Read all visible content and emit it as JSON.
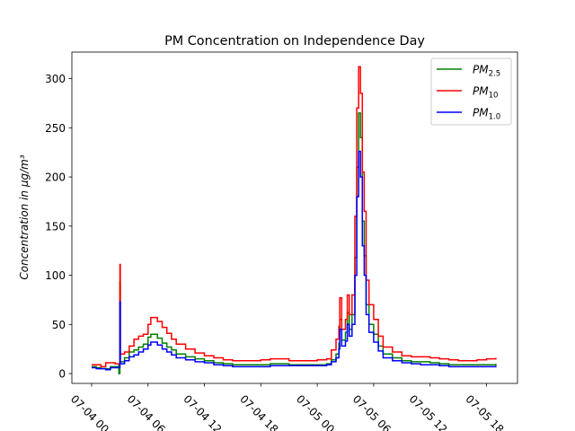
{
  "chart_data": {
    "type": "line",
    "title": "PM Concentration on Independence Day",
    "xlabel": "",
    "ylabel": "Concentration in μg/m³",
    "ylim": [
      -10,
      327
    ],
    "y_ticks": [
      0,
      50,
      100,
      150,
      200,
      250,
      300
    ],
    "x_ticks": [
      "07-04 00",
      "07-04 06",
      "07-04 12",
      "07-04 18",
      "07-05 00",
      "07-05 06",
      "07-05 12",
      "07-05 18"
    ],
    "x_unit": "hours since 07-04 00:00",
    "xlim": [
      -2.1,
      45.3
    ],
    "grid": false,
    "legend_position": "top-right",
    "series": [
      {
        "name": "PM2.5",
        "legend_base": "PM",
        "legend_sub": "2.5",
        "color": "#008000",
        "points": [
          [
            0,
            7
          ],
          [
            0.5,
            6
          ],
          [
            1,
            5
          ],
          [
            1.5,
            5
          ],
          [
            2,
            7
          ],
          [
            2.5,
            7
          ],
          [
            3,
            9
          ],
          [
            2.9,
            0
          ],
          [
            3,
            7
          ],
          [
            3,
            93
          ],
          [
            3.05,
            12
          ],
          [
            3.5,
            16
          ],
          [
            4,
            22
          ],
          [
            4.5,
            24
          ],
          [
            5,
            27
          ],
          [
            5.5,
            30
          ],
          [
            6,
            37
          ],
          [
            6.3,
            40
          ],
          [
            7,
            36
          ],
          [
            7.5,
            31
          ],
          [
            8,
            27
          ],
          [
            8.5,
            24
          ],
          [
            9,
            20
          ],
          [
            10,
            17
          ],
          [
            11,
            15
          ],
          [
            12,
            13
          ],
          [
            13,
            11
          ],
          [
            14,
            10
          ],
          [
            15,
            9
          ],
          [
            16,
            9
          ],
          [
            17,
            9
          ],
          [
            18,
            9
          ],
          [
            19,
            10
          ],
          [
            20,
            10
          ],
          [
            21,
            9
          ],
          [
            22,
            9
          ],
          [
            23,
            9
          ],
          [
            24,
            9
          ],
          [
            25,
            10
          ],
          [
            25.5,
            14
          ],
          [
            26,
            20
          ],
          [
            26.3,
            31
          ],
          [
            26.4,
            55
          ],
          [
            26.6,
            34
          ],
          [
            27,
            42
          ],
          [
            27.2,
            62
          ],
          [
            27.4,
            45
          ],
          [
            27.7,
            60
          ],
          [
            28,
            118
          ],
          [
            28.2,
            210
          ],
          [
            28.4,
            265
          ],
          [
            28.6,
            240
          ],
          [
            28.8,
            155
          ],
          [
            29,
            120
          ],
          [
            29.2,
            70
          ],
          [
            29.5,
            50
          ],
          [
            30,
            40
          ],
          [
            30.5,
            28
          ],
          [
            31,
            20
          ],
          [
            32,
            16
          ],
          [
            33,
            13
          ],
          [
            34,
            12
          ],
          [
            35,
            12
          ],
          [
            36,
            11
          ],
          [
            37,
            10
          ],
          [
            38,
            9
          ],
          [
            39,
            9
          ],
          [
            40,
            9
          ],
          [
            41,
            9
          ],
          [
            42,
            9
          ],
          [
            43,
            10
          ]
        ]
      },
      {
        "name": "PM10",
        "legend_base": "PM",
        "legend_sub": "10",
        "color": "#ff0000",
        "points": [
          [
            0,
            9
          ],
          [
            0.5,
            9
          ],
          [
            1,
            7
          ],
          [
            1.5,
            11
          ],
          [
            2,
            11
          ],
          [
            2.5,
            10
          ],
          [
            3,
            13
          ],
          [
            3.01,
            111
          ],
          [
            3.05,
            20
          ],
          [
            3.5,
            22
          ],
          [
            4,
            28
          ],
          [
            4.5,
            35
          ],
          [
            5,
            38
          ],
          [
            5.5,
            40
          ],
          [
            6,
            50
          ],
          [
            6.3,
            57
          ],
          [
            7,
            53
          ],
          [
            7.5,
            47
          ],
          [
            8,
            41
          ],
          [
            8.5,
            35
          ],
          [
            9,
            30
          ],
          [
            10,
            25
          ],
          [
            11,
            21
          ],
          [
            12,
            18
          ],
          [
            13,
            16
          ],
          [
            14,
            14
          ],
          [
            15,
            13
          ],
          [
            16,
            13
          ],
          [
            17,
            13
          ],
          [
            18,
            14
          ],
          [
            19,
            15
          ],
          [
            20,
            15
          ],
          [
            21,
            13
          ],
          [
            22,
            13
          ],
          [
            23,
            13
          ],
          [
            24,
            14
          ],
          [
            25,
            15
          ],
          [
            25.5,
            24
          ],
          [
            26,
            35
          ],
          [
            26.3,
            48
          ],
          [
            26.4,
            77
          ],
          [
            26.6,
            45
          ],
          [
            27,
            55
          ],
          [
            27.2,
            80
          ],
          [
            27.4,
            60
          ],
          [
            27.7,
            80
          ],
          [
            28,
            160
          ],
          [
            28.2,
            270
          ],
          [
            28.4,
            312
          ],
          [
            28.6,
            285
          ],
          [
            28.8,
            205
          ],
          [
            29,
            165
          ],
          [
            29.2,
            95
          ],
          [
            29.5,
            70
          ],
          [
            30,
            55
          ],
          [
            30.5,
            38
          ],
          [
            31,
            27
          ],
          [
            32,
            22
          ],
          [
            33,
            18
          ],
          [
            34,
            17
          ],
          [
            35,
            17
          ],
          [
            36,
            16
          ],
          [
            37,
            15
          ],
          [
            38,
            14
          ],
          [
            39,
            13
          ],
          [
            40,
            13
          ],
          [
            41,
            14
          ],
          [
            42,
            15
          ],
          [
            43,
            16
          ]
        ]
      },
      {
        "name": "PM1.0",
        "legend_base": "PM",
        "legend_sub": "1.0",
        "color": "#0000ff",
        "points": [
          [
            0,
            6
          ],
          [
            0.5,
            5
          ],
          [
            1,
            5
          ],
          [
            1.5,
            4
          ],
          [
            2,
            6
          ],
          [
            2.5,
            6
          ],
          [
            3,
            7
          ],
          [
            3.01,
            73
          ],
          [
            3.05,
            10
          ],
          [
            3.5,
            13
          ],
          [
            4,
            17
          ],
          [
            4.5,
            19
          ],
          [
            5,
            22
          ],
          [
            5.5,
            25
          ],
          [
            6,
            29
          ],
          [
            6.3,
            32
          ],
          [
            7,
            29
          ],
          [
            7.5,
            25
          ],
          [
            8,
            22
          ],
          [
            8.5,
            19
          ],
          [
            9,
            16
          ],
          [
            10,
            14
          ],
          [
            11,
            12
          ],
          [
            12,
            11
          ],
          [
            13,
            9
          ],
          [
            14,
            8
          ],
          [
            15,
            7
          ],
          [
            16,
            7
          ],
          [
            17,
            7
          ],
          [
            18,
            7
          ],
          [
            19,
            8
          ],
          [
            20,
            8
          ],
          [
            21,
            8
          ],
          [
            22,
            8
          ],
          [
            23,
            8
          ],
          [
            24,
            8
          ],
          [
            25,
            9
          ],
          [
            25.5,
            12
          ],
          [
            26,
            16
          ],
          [
            26.3,
            25
          ],
          [
            26.4,
            45
          ],
          [
            26.6,
            28
          ],
          [
            27,
            33
          ],
          [
            27.2,
            50
          ],
          [
            27.4,
            38
          ],
          [
            27.7,
            50
          ],
          [
            28,
            100
          ],
          [
            28.2,
            180
          ],
          [
            28.4,
            226
          ],
          [
            28.6,
            200
          ],
          [
            28.8,
            130
          ],
          [
            29,
            100
          ],
          [
            29.2,
            60
          ],
          [
            29.5,
            42
          ],
          [
            30,
            32
          ],
          [
            30.5,
            23
          ],
          [
            31,
            16
          ],
          [
            32,
            13
          ],
          [
            33,
            11
          ],
          [
            34,
            10
          ],
          [
            35,
            9
          ],
          [
            36,
            9
          ],
          [
            37,
            8
          ],
          [
            38,
            7
          ],
          [
            39,
            7
          ],
          [
            40,
            7
          ],
          [
            41,
            7
          ],
          [
            42,
            7
          ],
          [
            43,
            8
          ]
        ]
      }
    ]
  }
}
